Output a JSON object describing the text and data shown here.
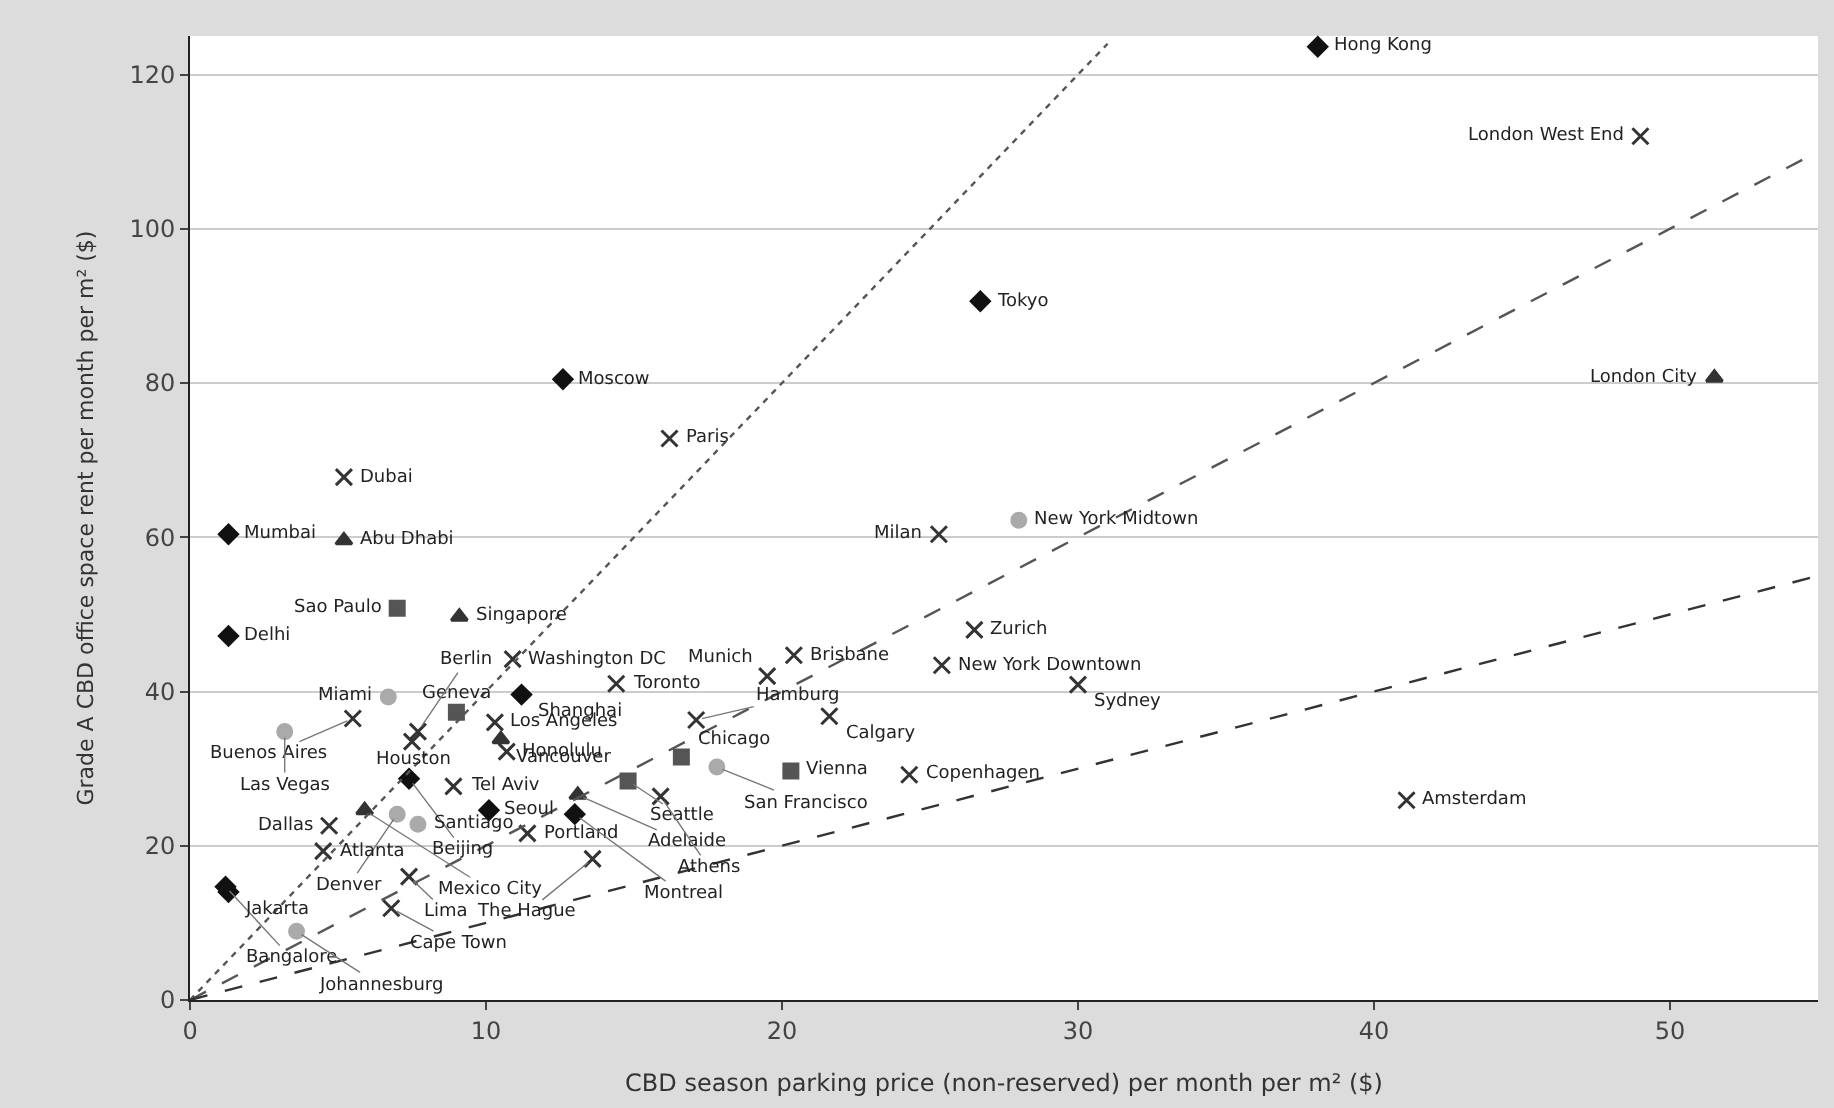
{
  "chart_data": {
    "type": "scatter",
    "xlabel": "CBD season parking price (non-reserved) per month per m² ($)",
    "ylabel": "Grade A CBD office space rent per month per m² ($)",
    "xlim": [
      0,
      55
    ],
    "ylim": [
      0,
      125
    ],
    "xticks": [
      0,
      10,
      20,
      30,
      40,
      50
    ],
    "yticks": [
      0,
      20,
      40,
      60,
      80,
      100,
      120
    ],
    "grid": "y",
    "series": [
      {
        "marker": "diamond",
        "color": "#111111",
        "x": [
          38.1,
          26.7,
          12.6,
          1.3,
          1.3,
          11.2,
          7.4,
          10.1,
          1.2,
          1.3,
          13.0
        ],
        "values": [
          123.6,
          90.6,
          80.5,
          60.4,
          47.2,
          39.6,
          28.7,
          24.6,
          14.7,
          14.0,
          24.1
        ]
      },
      {
        "marker": "cross",
        "color": "#333333",
        "x": [
          16.2,
          5.2,
          10.3,
          4.5,
          15.9,
          13.6,
          17.1,
          25.4,
          25.3,
          20.4,
          10.9,
          7.7,
          8.9,
          7.4,
          21.6,
          49.0,
          5.5,
          7.5,
          10.7,
          14.4,
          4.7,
          11.4,
          6.8,
          24.3,
          26.5,
          30.0,
          41.1,
          19.5
        ],
        "values": [
          72.8,
          67.8,
          36.0,
          19.3,
          26.4,
          18.3,
          36.3,
          43.4,
          60.4,
          44.7,
          44.2,
          34.8,
          27.7,
          16.0,
          36.8,
          112.0,
          36.5,
          33.5,
          32.2,
          41.0,
          22.6,
          21.6,
          11.9,
          29.2,
          48.0,
          40.9,
          25.9,
          42.0
        ]
      },
      {
        "marker": "triangle",
        "color": "#333333",
        "x": [
          51.5,
          5.2,
          9.1,
          10.5,
          5.9,
          13.1
        ],
        "values": [
          80.7,
          59.6,
          49.7,
          33.8,
          24.6,
          26.6
        ]
      },
      {
        "marker": "square",
        "color": "#555555",
        "x": [
          7.0,
          9.0,
          14.8,
          16.6,
          20.3
        ],
        "values": [
          50.8,
          37.3,
          28.4,
          31.5,
          29.7
        ]
      },
      {
        "marker": "circle",
        "color": "#aaaaaa",
        "x": [
          3.2,
          7.0,
          7.7,
          3.6,
          17.8,
          28.0,
          6.7
        ],
        "values": [
          34.8,
          24.1,
          22.8,
          8.9,
          30.2,
          62.2,
          39.3
        ]
      },
      {
        "type": "line",
        "line_style": "dotted",
        "marker": "none",
        "color": "#555555",
        "x": [
          0,
          31
        ],
        "values": [
          0,
          124
        ]
      },
      {
        "type": "line",
        "line_style": "dashed",
        "marker": "none",
        "color": "#555555",
        "x": [
          0,
          55
        ],
        "values": [
          0,
          110
        ]
      },
      {
        "type": "line",
        "line_style": "dashed",
        "marker": "none",
        "color": "#333333",
        "x": [
          0,
          55
        ],
        "values": [
          0,
          55
        ]
      }
    ],
    "annotations": [
      {
        "text": "Hong Kong",
        "x": 38.1,
        "y": 123.6
      },
      {
        "text": "London West End",
        "x": 49.0,
        "y": 112.0
      },
      {
        "text": "Tokyo",
        "x": 26.7,
        "y": 90.6
      },
      {
        "text": "London City",
        "x": 51.5,
        "y": 80.7
      },
      {
        "text": "Moscow",
        "x": 12.6,
        "y": 80.5
      },
      {
        "text": "Paris",
        "x": 16.2,
        "y": 72.8
      },
      {
        "text": "Dubai",
        "x": 5.2,
        "y": 67.8
      },
      {
        "text": "Mumbai",
        "x": 1.3,
        "y": 60.4
      },
      {
        "text": "Abu Dhabi",
        "x": 5.2,
        "y": 59.6
      },
      {
        "text": "Sao Paulo",
        "x": 7.0,
        "y": 50.8
      },
      {
        "text": "Singapore",
        "x": 9.1,
        "y": 49.7
      },
      {
        "text": "Delhi",
        "x": 1.3,
        "y": 47.2
      },
      {
        "text": "Washington DC",
        "x": 10.9,
        "y": 44.2
      },
      {
        "text": "Miami",
        "x": 6.7,
        "y": 39.3
      },
      {
        "text": "Geneva",
        "x": 9.0,
        "y": 37.3
      },
      {
        "text": "Shanghai",
        "x": 11.2,
        "y": 39.6
      },
      {
        "text": "Buenos Aires",
        "x": 5.5,
        "y": 36.5
      },
      {
        "text": "Las Vegas",
        "x": 3.2,
        "y": 34.8
      },
      {
        "text": "Berlin",
        "x": 7.7,
        "y": 34.8
      },
      {
        "text": "Houston",
        "x": 7.5,
        "y": 33.5
      },
      {
        "text": "Los Angeles",
        "x": 10.3,
        "y": 36.0
      },
      {
        "text": "Vancouver",
        "x": 10.5,
        "y": 33.8
      },
      {
        "text": "Honolulu",
        "x": 10.7,
        "y": 32.2
      },
      {
        "text": "Toronto",
        "x": 14.4,
        "y": 41.0
      },
      {
        "text": "Beijing",
        "x": 7.4,
        "y": 28.7
      },
      {
        "text": "Tel Aviv",
        "x": 8.9,
        "y": 27.7
      },
      {
        "text": "Mexico City",
        "x": 5.9,
        "y": 24.6
      },
      {
        "text": "Denver",
        "x": 7.0,
        "y": 24.1
      },
      {
        "text": "Seoul",
        "x": 10.1,
        "y": 24.6
      },
      {
        "text": "Dallas",
        "x": 4.7,
        "y": 22.6
      },
      {
        "text": "Santiago",
        "x": 7.7,
        "y": 22.8
      },
      {
        "text": "Portland",
        "x": 11.4,
        "y": 21.6
      },
      {
        "text": "Atlanta",
        "x": 4.5,
        "y": 19.3
      },
      {
        "text": "Bangalore",
        "x": 1.2,
        "y": 14.7
      },
      {
        "text": "Jakarta",
        "x": 1.3,
        "y": 14.0
      },
      {
        "text": "Lima",
        "x": 7.4,
        "y": 16.0
      },
      {
        "text": "Cape Town",
        "x": 6.8,
        "y": 11.9
      },
      {
        "text": "Johannesburg",
        "x": 3.6,
        "y": 8.9
      },
      {
        "text": "Seattle",
        "x": 14.8,
        "y": 28.4
      },
      {
        "text": "Adelaide",
        "x": 13.1,
        "y": 26.6
      },
      {
        "text": "Athens",
        "x": 15.9,
        "y": 26.4
      },
      {
        "text": "Montreal",
        "x": 13.0,
        "y": 24.1
      },
      {
        "text": "The Hague",
        "x": 13.6,
        "y": 18.3
      },
      {
        "text": "Chicago",
        "x": 16.6,
        "y": 31.5
      },
      {
        "text": "San Francisco",
        "x": 17.8,
        "y": 30.2
      },
      {
        "text": "Vienna",
        "x": 20.3,
        "y": 29.7
      },
      {
        "text": "Hamburg",
        "x": 17.1,
        "y": 36.3
      },
      {
        "text": "Calgary",
        "x": 21.6,
        "y": 36.8
      },
      {
        "text": "Copenhagen",
        "x": 24.3,
        "y": 29.2
      },
      {
        "text": "Brisbane",
        "x": 20.4,
        "y": 44.7
      },
      {
        "text": "Munich",
        "x": 19.5,
        "y": 42.0
      },
      {
        "text": "Zurich",
        "x": 26.5,
        "y": 48.0
      },
      {
        "text": "New York Downtown",
        "x": 25.4,
        "y": 43.4
      },
      {
        "text": "Sydney",
        "x": 30.0,
        "y": 40.9
      },
      {
        "text": "Milan",
        "x": 25.3,
        "y": 60.4
      },
      {
        "text": "New York Midtown",
        "x": 28.0,
        "y": 62.2
      },
      {
        "text": "Amsterdam",
        "x": 41.1,
        "y": 25.9
      }
    ]
  }
}
